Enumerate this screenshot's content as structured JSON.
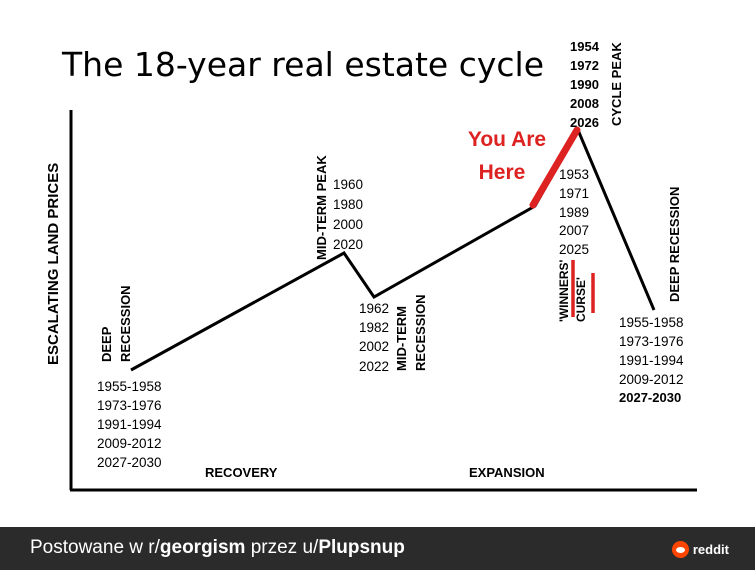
{
  "title": "The 18-year real estate cycle",
  "y_axis_label": "ESCALATING LAND PRICES",
  "x_labels": {
    "recovery": "RECOVERY",
    "expansion": "EXPANSION"
  },
  "phases": {
    "deep_recession_left": [
      "DEEP",
      "RECESSION"
    ],
    "mid_term_peak": "MID-TERM PEAK",
    "mid_term_recession": [
      "MID-TERM",
      "RECESSION"
    ],
    "cycle_peak": "CYCLE PEAK",
    "deep_recession_right": "DEEP RECESSION",
    "winners_curse": [
      "'WINNERS'",
      "CURSE'"
    ]
  },
  "years": {
    "deep_recession_left": [
      "1955-1958",
      "1973-1976",
      "1991-1994",
      "2009-2012",
      "2027-2030"
    ],
    "mid_term_peak": [
      "1960",
      "1980",
      "2000",
      "2020"
    ],
    "mid_term_recession": [
      "1962",
      "1982",
      "2002",
      "2022"
    ],
    "cycle_peak": [
      "1954",
      "1972",
      "1990",
      "2008",
      "2026"
    ],
    "pre_peak": [
      "1953",
      "1971",
      "1989",
      "2007",
      "2025"
    ],
    "deep_recession_right": [
      "1955-1958",
      "1973-1976",
      "1991-1994",
      "2009-2012"
    ],
    "deep_recession_right_highlight": "2027-2030"
  },
  "you_are_here": [
    "You Are",
    "Here"
  ],
  "colors": {
    "accent": "#dd2222",
    "line": "#000000",
    "footer_bg": "#2b2b2b",
    "brand": "#ff4500"
  },
  "footer": {
    "prefix": "Postowane w r/",
    "subreddit": "georgism",
    "middle": " przez u/",
    "user": "Plupsnup",
    "brand": "reddit",
    "brand_icon": "reddit-alien-icon"
  }
}
